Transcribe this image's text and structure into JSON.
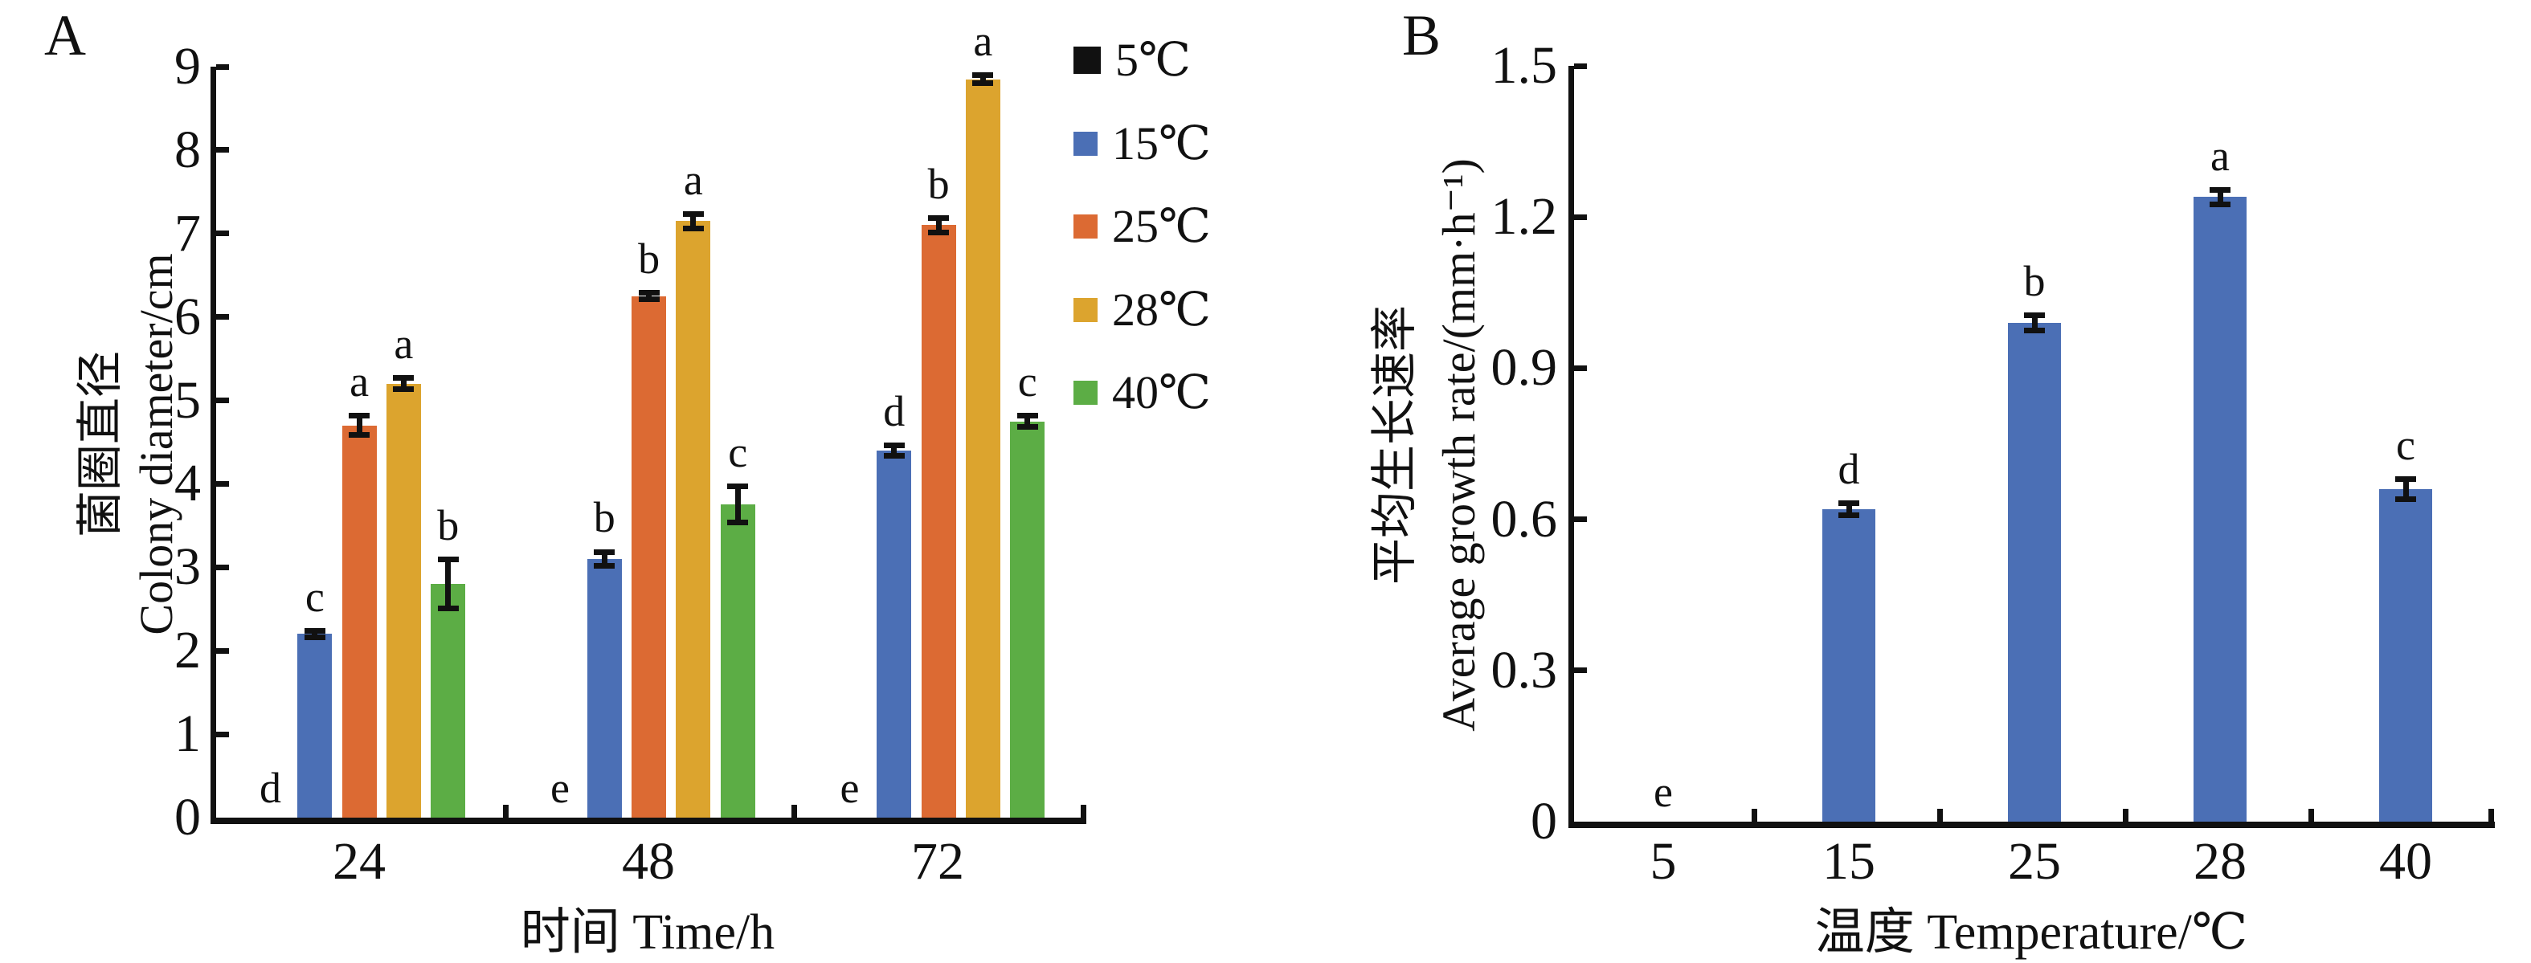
{
  "chart_data": [
    {
      "type": "bar",
      "panel_label": "A",
      "ylabel_zh": "菌圈直径",
      "ylabel_en": "Colony diameter/cm",
      "xlabel": "时间 Time/h",
      "ylim": [
        0,
        9
      ],
      "ytick_labels": [
        "0",
        "1",
        "2",
        "3",
        "4",
        "5",
        "6",
        "7",
        "8",
        "9"
      ],
      "categories": [
        "24",
        "48",
        "72"
      ],
      "grid": false,
      "legend_position": "right-of-plot",
      "error_bars": true,
      "series": [
        {
          "name": "5℃",
          "color": "#111111",
          "values": [
            0,
            0,
            0
          ],
          "errors": [
            0,
            0,
            0
          ],
          "letters": [
            "d",
            "e",
            "e"
          ]
        },
        {
          "name": "15℃",
          "color": "#4b6fb5",
          "values": [
            2.2,
            3.1,
            4.4
          ],
          "errors": [
            0.07,
            0.12,
            0.1
          ],
          "letters": [
            "c",
            "b",
            "d"
          ]
        },
        {
          "name": "25℃",
          "color": "#dc6a33",
          "values": [
            4.7,
            6.25,
            7.1
          ],
          "errors": [
            0.15,
            0.07,
            0.12
          ],
          "letters": [
            "a",
            "b",
            "b"
          ]
        },
        {
          "name": "28℃",
          "color": "#dca42e",
          "values": [
            5.2,
            7.15,
            8.85
          ],
          "errors": [
            0.1,
            0.12,
            0.08
          ],
          "letters": [
            "a",
            "a",
            "a"
          ]
        },
        {
          "name": "40℃",
          "color": "#5cad45",
          "values": [
            2.8,
            3.75,
            4.75
          ],
          "errors": [
            0.33,
            0.25,
            0.1
          ],
          "letters": [
            "b",
            "c",
            "c"
          ]
        }
      ]
    },
    {
      "type": "bar",
      "panel_label": "B",
      "ylabel_zh": "平均生长速率",
      "ylabel_en": "Average growth rate/(mm·h⁻¹)",
      "xlabel": "温度 Temperature/℃",
      "ylim": [
        0,
        1.5
      ],
      "ytick_labels": [
        "0",
        "0.3",
        "0.6",
        "0.9",
        "1.2",
        "1.5"
      ],
      "categories": [
        "5",
        "15",
        "25",
        "28",
        "40"
      ],
      "grid": false,
      "error_bars": true,
      "bar_color": "#4b6fb5",
      "values": [
        0,
        0.62,
        0.99,
        1.24,
        0.66
      ],
      "errors": [
        0,
        0.018,
        0.02,
        0.02,
        0.025
      ],
      "letters": [
        "e",
        "d",
        "b",
        "a",
        "c"
      ]
    }
  ]
}
